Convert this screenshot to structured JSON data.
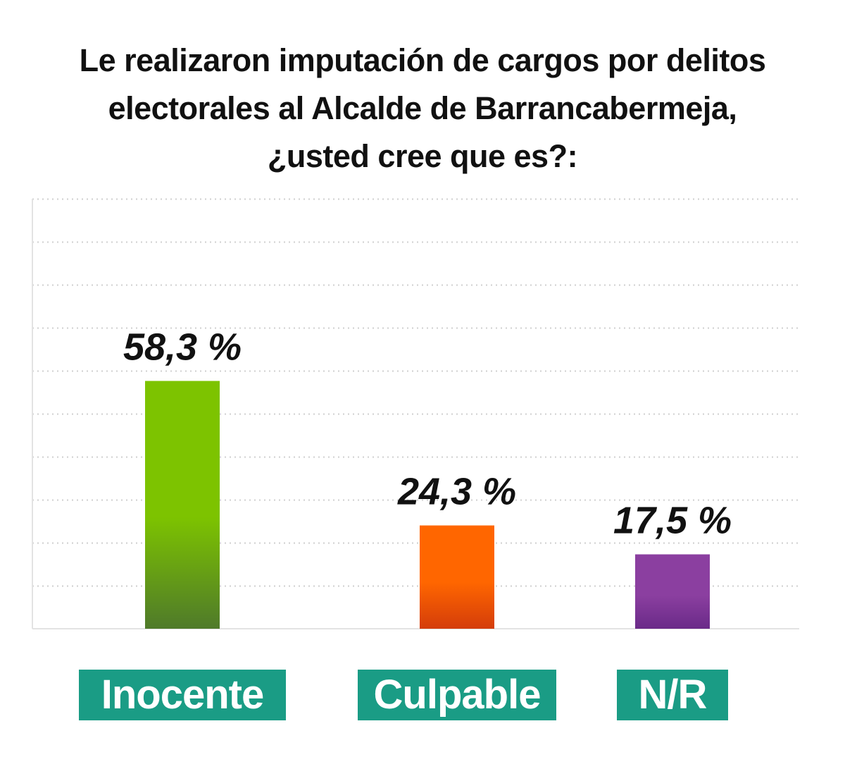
{
  "title_lines": [
    "Le realizaron imputación de cargos por delitos",
    "electorales al Alcalde de Barrancabermeja,",
    "¿usted cree que es?:"
  ],
  "colors": {
    "bar_inocente_top": "#7dc300",
    "bar_inocente_bottom": "#4f7a2a",
    "bar_culpable_top": "#ff6600",
    "bar_culpable_bottom": "#d43d0a",
    "bar_nr_top": "#8b3fa0",
    "bar_nr_bottom": "#6a2a88",
    "label_bg": "#1a9c85",
    "label_text": "#ffffff",
    "grid": "#cfcfcf"
  },
  "chart_data": {
    "type": "bar",
    "categories": [
      "Inocente",
      "Culpable",
      "N/R"
    ],
    "values": [
      58.3,
      24.3,
      17.5
    ],
    "value_labels": [
      "58,3 %",
      "24,3 %",
      "17,5 %"
    ],
    "title": "Le realizaron imputación de cargos por delitos electorales al Alcalde de Barrancabermeja, ¿usted cree que es?:",
    "xlabel": "",
    "ylabel": "",
    "ylim": [
      0,
      100
    ],
    "grid": true,
    "legend": "none"
  }
}
